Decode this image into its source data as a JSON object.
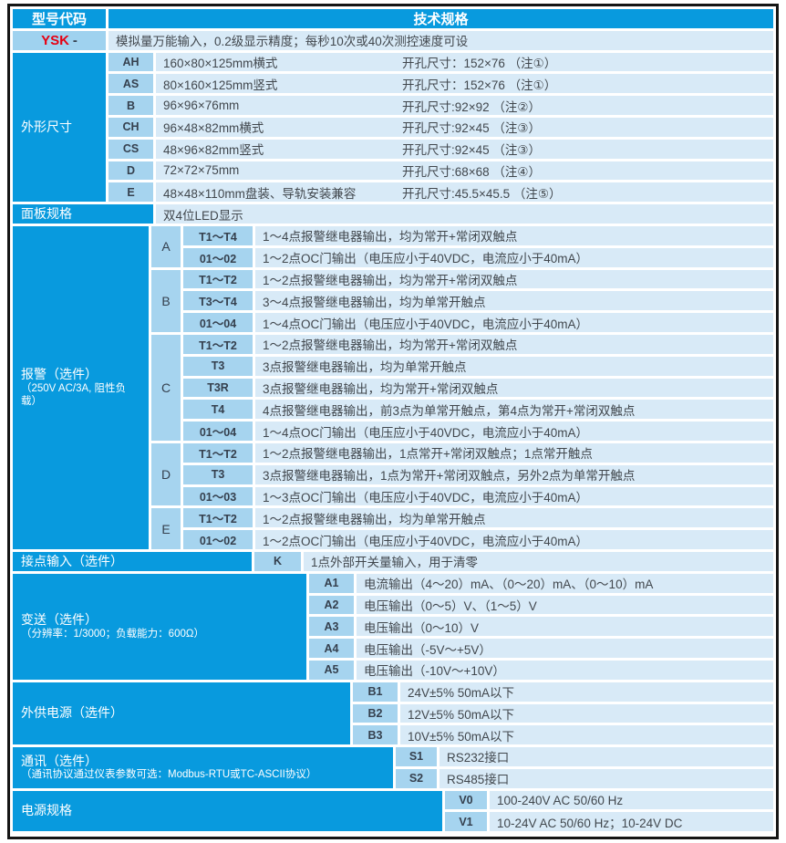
{
  "colors": {
    "accent": "#089ADE",
    "code_cell_bg": "#A6D4EF",
    "desc_cell_bg": "#D8EAF7",
    "model_red": "#E60012",
    "border": "#151515"
  },
  "header": {
    "col1": "型号代码",
    "col2": "技术规格"
  },
  "model": {
    "code": "YSK",
    "suffix": "-",
    "desc": "模拟量万能输入，0.2级显示精度；每秒10次或40次测控速度可设"
  },
  "dimensions": {
    "label": "外形尺寸",
    "rows": [
      {
        "code": "AH",
        "desc": "160×80×125mm横式",
        "hole": "开孔尺寸：152×76 （注①）"
      },
      {
        "code": "AS",
        "desc": "80×160×125mm竖式",
        "hole": "开孔尺寸：152×76 （注①）"
      },
      {
        "code": "B",
        "desc": "96×96×76mm",
        "hole": "开孔尺寸:92×92 （注②）"
      },
      {
        "code": "CH",
        "desc": "96×48×82mm横式",
        "hole": "开孔尺寸:92×45 （注③）"
      },
      {
        "code": "CS",
        "desc": "48×96×82mm竖式",
        "hole": "开孔尺寸:92×45 （注③）"
      },
      {
        "code": "D",
        "desc": "72×72×75mm",
        "hole": "开孔尺寸:68×68 （注④）"
      },
      {
        "code": "E",
        "desc": "48×48×110mm盘装、导轨安装兼容",
        "hole": "开孔尺寸:45.5×45.5 （注⑤）"
      }
    ]
  },
  "panel": {
    "label": "面板规格",
    "desc": "双4位LED显示"
  },
  "alarm": {
    "label": "报警（选件）",
    "sublabel": "（250V AC/3A, 阻性负载）",
    "groups": [
      {
        "letter": "A",
        "rows": [
          {
            "code": "T1～T4",
            "desc": "1～4点报警继电器输出，均为常开+常闭双触点"
          },
          {
            "code": "01～02",
            "desc": "1～2点OC门输出（电压应小于40VDC，电流应小于40mA）"
          }
        ]
      },
      {
        "letter": "B",
        "rows": [
          {
            "code": "T1～T2",
            "desc": "1～2点报警继电器输出，均为常开+常闭双触点"
          },
          {
            "code": "T3～T4",
            "desc": "3～4点报警继电器输出，均为单常开触点"
          },
          {
            "code": "01～04",
            "desc": "1～4点OC门输出（电压应小于40VDC，电流应小于40mA）"
          }
        ]
      },
      {
        "letter": "C",
        "rows": [
          {
            "code": "T1～T2",
            "desc": "1～2点报警继电器输出，均为常开+常闭双触点"
          },
          {
            "code": "T3",
            "desc": "3点报警继电器输出，均为单常开触点"
          },
          {
            "code": "T3R",
            "desc": "3点报警继电器输出，均为常开+常闭双触点"
          },
          {
            "code": "T4",
            "desc": "4点报警继电器输出，前3点为单常开触点，第4点为常开+常闭双触点"
          },
          {
            "code": "01～04",
            "desc": "1～4点OC门输出（电压应小于40VDC，电流应小于40mA）"
          }
        ]
      },
      {
        "letter": "D",
        "rows": [
          {
            "code": "T1～T2",
            "desc": "1～2点报警继电器输出，1点常开+常闭双触点；1点常开触点"
          },
          {
            "code": "T3",
            "desc": "3点报警继电器输出，1点为常开+常闭双触点，另外2点为单常开触点"
          },
          {
            "code": "01～03",
            "desc": "1～3点OC门输出（电压应小于40VDC，电流应小于40mA）"
          }
        ]
      },
      {
        "letter": "E",
        "rows": [
          {
            "code": "T1～T2",
            "desc": "1～2点报警继电器输出，均为单常开触点"
          },
          {
            "code": "01～02",
            "desc": "1～2点OC门输出（电压应小于40VDC，电流应小于40mA）"
          }
        ]
      }
    ]
  },
  "contact": {
    "label": "接点输入（选件）",
    "code": "K",
    "desc": "1点外部开关量输入，用于清零"
  },
  "transmit": {
    "label": "变送（选件）",
    "sublabel": "（分辨率：1/3000；负载能力：600Ω）",
    "rows": [
      {
        "code": "A1",
        "desc": "电流输出（4～20）mA、（0～20）mA、（0～10）mA"
      },
      {
        "code": "A2",
        "desc": "电压输出（0～5）V、（1～5）V"
      },
      {
        "code": "A3",
        "desc": "电压输出（0～10）V"
      },
      {
        "code": "A4",
        "desc": "电压输出（-5V～+5V）"
      },
      {
        "code": "A5",
        "desc": "电压输出（-10V～+10V）"
      }
    ]
  },
  "aux_power": {
    "label": "外供电源（选件）",
    "rows": [
      {
        "code": "B1",
        "desc": "24V±5% 50mA以下"
      },
      {
        "code": "B2",
        "desc": "12V±5% 50mA以下"
      },
      {
        "code": "B3",
        "desc": "10V±5% 50mA以下"
      }
    ]
  },
  "comm": {
    "label": "通讯（选件）",
    "sublabel": "（通讯协议通过仪表参数可选：Modbus-RTU或TC-ASCII协议）",
    "rows": [
      {
        "code": "S1",
        "desc": "RS232接口"
      },
      {
        "code": "S2",
        "desc": "RS485接口"
      }
    ]
  },
  "power": {
    "label": "电源规格",
    "rows": [
      {
        "code": "V0",
        "desc": "100-240V AC 50/60 Hz"
      },
      {
        "code": "V1",
        "desc": "10-24V AC 50/60 Hz；10-24V DC"
      }
    ]
  }
}
